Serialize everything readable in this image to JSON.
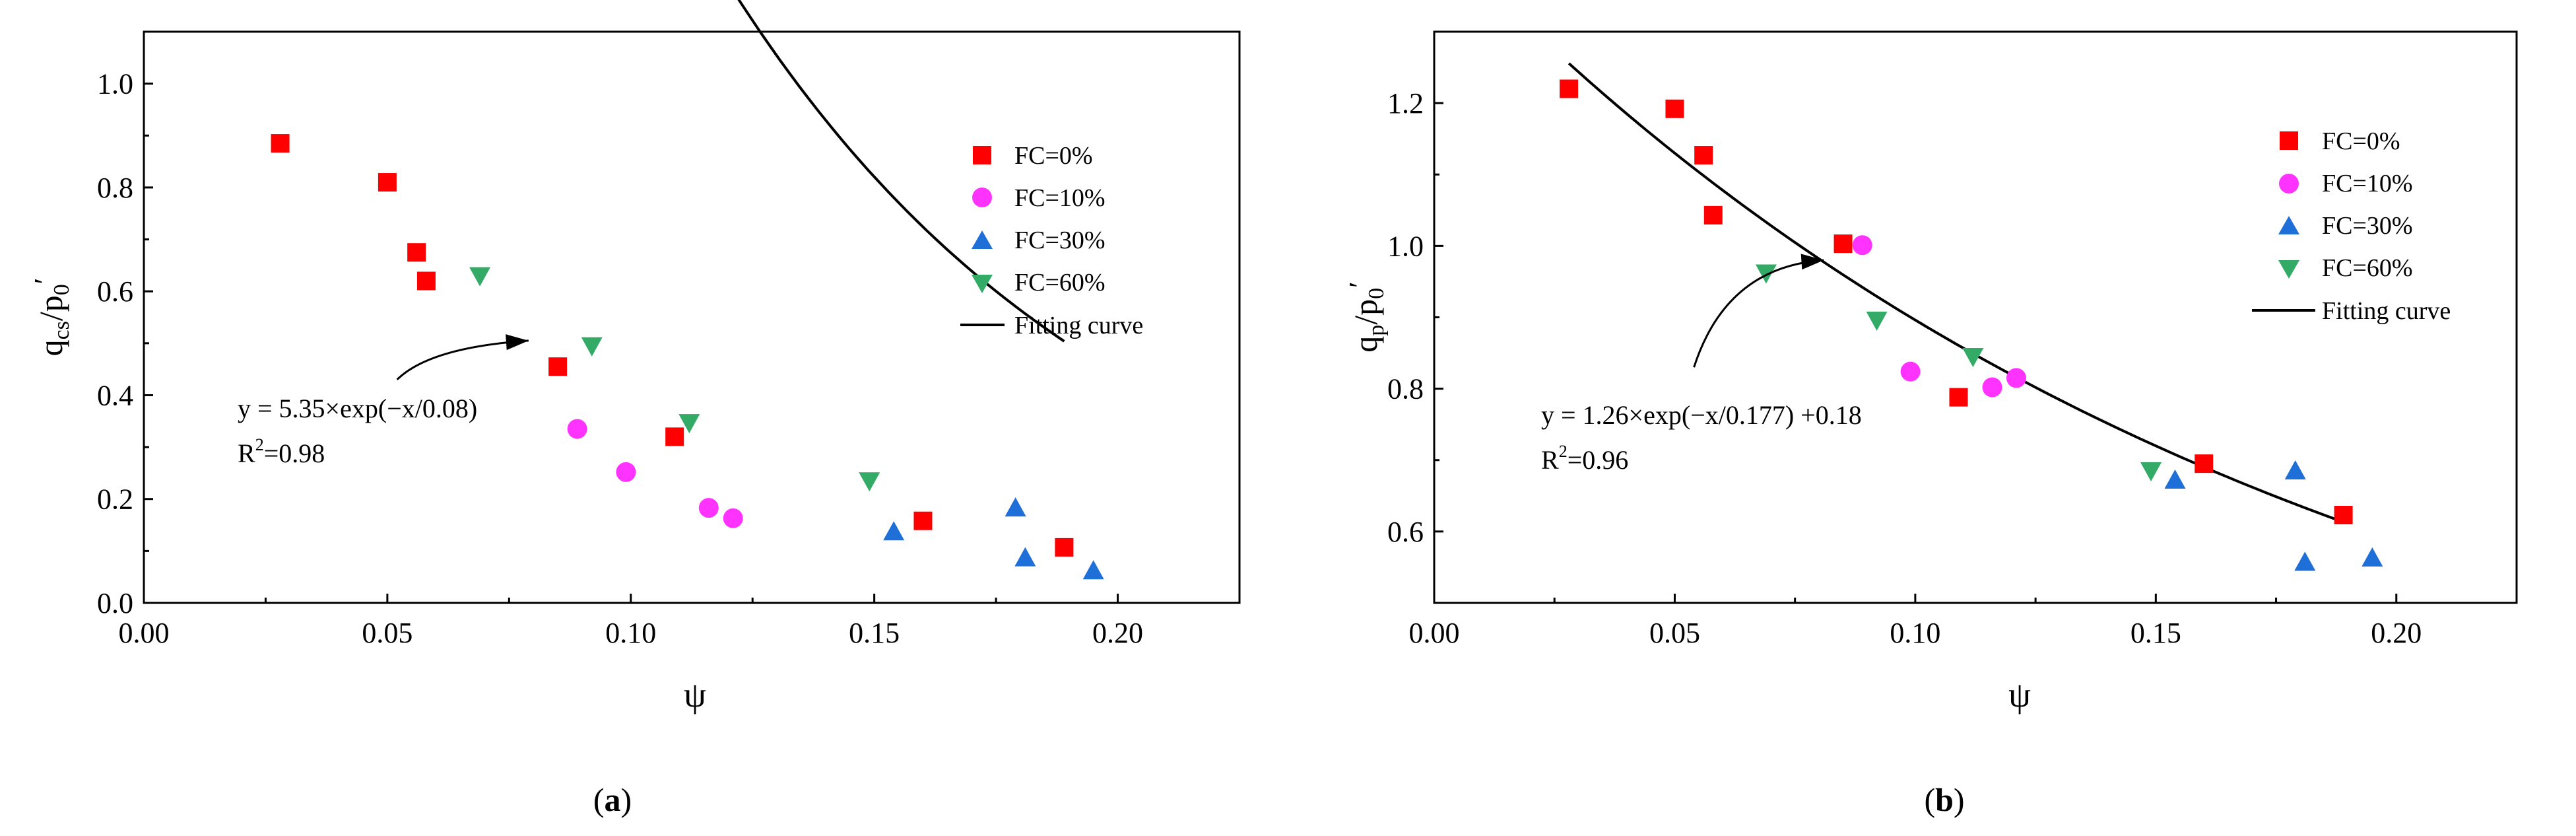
{
  "colors": {
    "fc0": "#ff0000",
    "fc10": "#ff33ff",
    "fc30": "#1f6fd8",
    "fc60": "#33aa66",
    "axis": "#000000",
    "curve": "#000000"
  },
  "legend_labels": {
    "fc0": "FC=0%",
    "fc10": "FC=10%",
    "fc30": "FC=30%",
    "fc60": "FC=60%",
    "fit": "Fitting curve"
  },
  "chart_data": [
    {
      "type": "scatter",
      "panel_label": "a",
      "xlabel": "ψ",
      "ylabel": "q_cs/p_0′",
      "xlim": [
        0.0,
        0.225
      ],
      "ylim": [
        0.0,
        1.1
      ],
      "xticks": [
        0.0,
        0.05,
        0.1,
        0.15,
        0.2
      ],
      "xtick_labels": [
        "0.00",
        "0.05",
        "0.10",
        "0.15",
        "0.20"
      ],
      "yticks": [
        0.0,
        0.2,
        0.4,
        0.6,
        0.8,
        1.0
      ],
      "ytick_labels": [
        "0.0",
        "0.2",
        "0.4",
        "0.6",
        "0.8",
        "1.0"
      ],
      "legend_position": "top-right",
      "series": [
        {
          "name": "FC=0%",
          "marker": "square",
          "color_key": "fc0",
          "x": [
            0.028,
            0.05,
            0.056,
            0.058,
            0.085,
            0.109,
            0.16,
            0.189
          ],
          "y": [
            0.885,
            0.81,
            0.675,
            0.62,
            0.455,
            0.32,
            0.158,
            0.107
          ]
        },
        {
          "name": "FC=10%",
          "marker": "circle",
          "color_key": "fc10",
          "x": [
            0.089,
            0.099,
            0.116,
            0.121
          ],
          "y": [
            0.335,
            0.252,
            0.183,
            0.163
          ]
        },
        {
          "name": "FC=30%",
          "marker": "triangle-up",
          "color_key": "fc30",
          "x": [
            0.154,
            0.179,
            0.181,
            0.195
          ],
          "y": [
            0.137,
            0.183,
            0.087,
            0.062
          ]
        },
        {
          "name": "FC=60%",
          "marker": "triangle-down",
          "color_key": "fc60",
          "x": [
            0.069,
            0.092,
            0.112,
            0.149
          ],
          "y": [
            0.63,
            0.495,
            0.347,
            0.235
          ]
        }
      ],
      "fit": {
        "name": "Fitting curve",
        "a": 5.35,
        "t": 0.08,
        "c": 0.0,
        "x_range": [
          0.028,
          0.189
        ]
      },
      "equation": "y = 5.35×exp(−x/0.08)",
      "r2_label": "R",
      "r2_sup": "2",
      "r2_value": "=0.98",
      "arrow": {
        "from": [
          0.052,
          0.43
        ],
        "to": [
          0.079,
          0.505
        ]
      }
    },
    {
      "type": "scatter",
      "panel_label": "b",
      "xlabel": "ψ",
      "ylabel": "q_p/p_0′",
      "xlim": [
        0.0,
        0.225
      ],
      "ylim": [
        0.5,
        1.3
      ],
      "xticks": [
        0.0,
        0.05,
        0.1,
        0.15,
        0.2
      ],
      "xtick_labels": [
        "0.00",
        "0.05",
        "0.10",
        "0.15",
        "0.20"
      ],
      "yticks": [
        0.6,
        0.8,
        1.0,
        1.2
      ],
      "ytick_labels": [
        "0.6",
        "0.8",
        "1.0",
        "1.2"
      ],
      "legend_position": "top-right",
      "series": [
        {
          "name": "FC=0%",
          "marker": "square",
          "color_key": "fc0",
          "x": [
            0.028,
            0.05,
            0.056,
            0.058,
            0.085,
            0.109,
            0.16,
            0.189
          ],
          "y": [
            1.22,
            1.192,
            1.127,
            1.043,
            1.003,
            0.788,
            0.695,
            0.623
          ]
        },
        {
          "name": "FC=10%",
          "marker": "circle",
          "color_key": "fc10",
          "x": [
            0.089,
            0.099,
            0.116,
            0.121
          ],
          "y": [
            1.001,
            0.824,
            0.802,
            0.815
          ]
        },
        {
          "name": "FC=30%",
          "marker": "triangle-up",
          "color_key": "fc30",
          "x": [
            0.154,
            0.179,
            0.181,
            0.195
          ],
          "y": [
            0.672,
            0.685,
            0.557,
            0.563
          ]
        },
        {
          "name": "FC=60%",
          "marker": "triangle-down",
          "color_key": "fc60",
          "x": [
            0.069,
            0.092,
            0.112,
            0.149
          ],
          "y": [
            0.962,
            0.896,
            0.845,
            0.685
          ]
        }
      ],
      "fit": {
        "name": "Fitting curve",
        "a": 1.26,
        "t": 0.177,
        "c": 0.18,
        "x_range": [
          0.028,
          0.189
        ]
      },
      "equation": "y = 1.26×exp(−x/0.177)  +0.18",
      "r2_label": "R",
      "r2_sup": "2",
      "r2_value": "=0.96",
      "arrow": {
        "from": [
          0.054,
          0.83
        ],
        "to": [
          0.081,
          0.98
        ]
      }
    }
  ]
}
